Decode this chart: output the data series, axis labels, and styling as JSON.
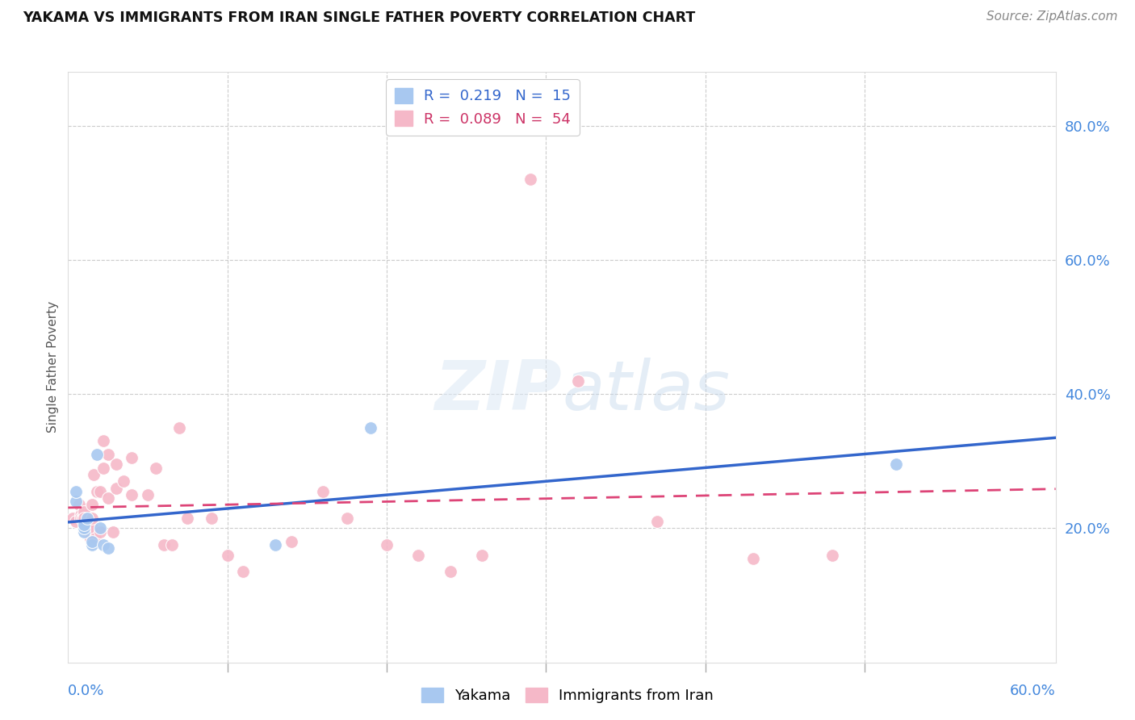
{
  "title": "YAKAMA VS IMMIGRANTS FROM IRAN SINGLE FATHER POVERTY CORRELATION CHART",
  "source": "Source: ZipAtlas.com",
  "ylabel": "Single Father Poverty",
  "xlim": [
    0.0,
    0.62
  ],
  "ylim": [
    0.0,
    0.88
  ],
  "yticks": [
    0.2,
    0.4,
    0.6,
    0.8
  ],
  "ytick_labels": [
    "20.0%",
    "40.0%",
    "60.0%",
    "80.0%"
  ],
  "xtick_positions": [
    0.1,
    0.2,
    0.3,
    0.4,
    0.5
  ],
  "background_color": "#ffffff",
  "grid_color": "#cccccc",
  "blue_color": "#a8c8f0",
  "pink_color": "#f5b8c8",
  "blue_line_color": "#3366cc",
  "pink_line_color": "#dd4477",
  "yakama_x": [
    0.005,
    0.005,
    0.01,
    0.01,
    0.01,
    0.012,
    0.015,
    0.015,
    0.018,
    0.02,
    0.022,
    0.025,
    0.13,
    0.19,
    0.52
  ],
  "yakama_y": [
    0.24,
    0.255,
    0.195,
    0.2,
    0.205,
    0.215,
    0.175,
    0.18,
    0.31,
    0.2,
    0.175,
    0.17,
    0.175,
    0.35,
    0.295
  ],
  "iran_x": [
    0.003,
    0.005,
    0.007,
    0.008,
    0.008,
    0.009,
    0.01,
    0.01,
    0.01,
    0.01,
    0.01,
    0.012,
    0.013,
    0.013,
    0.014,
    0.015,
    0.015,
    0.015,
    0.016,
    0.017,
    0.018,
    0.02,
    0.02,
    0.022,
    0.022,
    0.025,
    0.025,
    0.028,
    0.03,
    0.03,
    0.035,
    0.04,
    0.04,
    0.05,
    0.055,
    0.06,
    0.065,
    0.07,
    0.075,
    0.09,
    0.1,
    0.11,
    0.14,
    0.16,
    0.175,
    0.2,
    0.22,
    0.24,
    0.26,
    0.29,
    0.32,
    0.37,
    0.43,
    0.48
  ],
  "iran_y": [
    0.215,
    0.21,
    0.235,
    0.22,
    0.215,
    0.215,
    0.215,
    0.22,
    0.225,
    0.21,
    0.215,
    0.195,
    0.2,
    0.205,
    0.185,
    0.2,
    0.215,
    0.235,
    0.28,
    0.185,
    0.255,
    0.195,
    0.255,
    0.29,
    0.33,
    0.245,
    0.31,
    0.195,
    0.295,
    0.26,
    0.27,
    0.25,
    0.305,
    0.25,
    0.29,
    0.175,
    0.175,
    0.35,
    0.215,
    0.215,
    0.16,
    0.135,
    0.18,
    0.255,
    0.215,
    0.175,
    0.16,
    0.135,
    0.16,
    0.72,
    0.42,
    0.21,
    0.155,
    0.16
  ]
}
